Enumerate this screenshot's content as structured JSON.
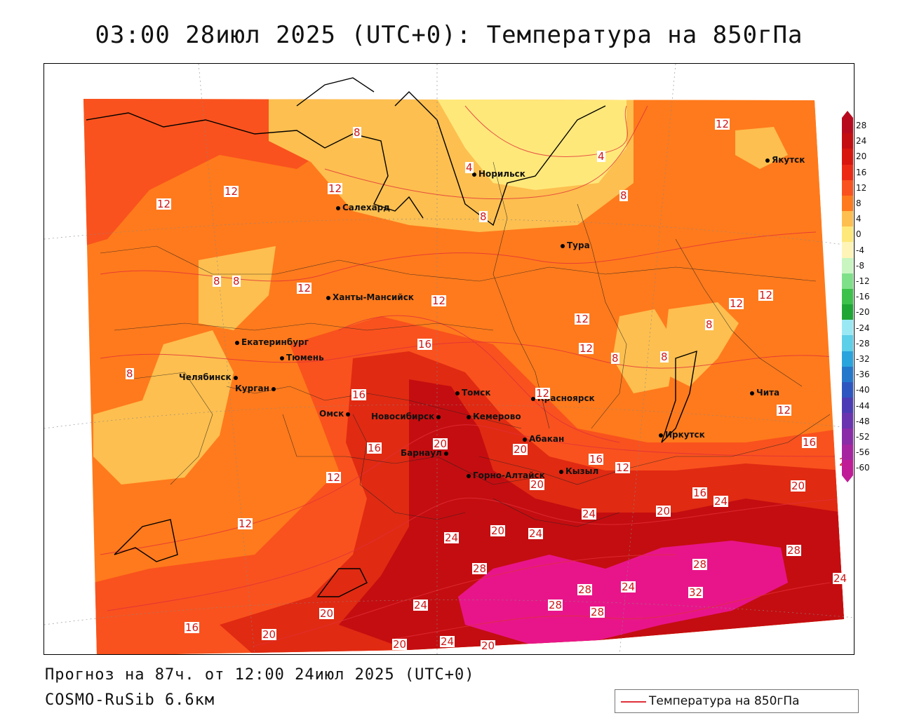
{
  "title": "03:00 28июл 2025 (UTC+0): Температура на 850гПа",
  "footer": {
    "forecast": "Прогноз на 87ч. от 12:00 24июл 2025 (UTC+0)",
    "model": "COSMO-RuSib 6.6км",
    "legend_label": "Температура на 850гПа"
  },
  "colors": {
    "c4": "#ffe87a",
    "c8": "#fdbf4f",
    "c12": "#ff7a1c",
    "c16": "#f9521e",
    "c20": "#e02a12",
    "c24": "#c40d10",
    "c28": "#e8158a",
    "contour": "#e0303a"
  },
  "cities": [
    {
      "name": "Норильск"
    },
    {
      "name": "Якутск"
    },
    {
      "name": "Салехард"
    },
    {
      "name": "Тура"
    },
    {
      "name": "Ханты-Мансийск"
    },
    {
      "name": "Екатеринбург"
    },
    {
      "name": "Тюмень"
    },
    {
      "name": "Челябинск"
    },
    {
      "name": "Курган"
    },
    {
      "name": "Омск"
    },
    {
      "name": "Новосибирск"
    },
    {
      "name": "Томск"
    },
    {
      "name": "Кемерово"
    },
    {
      "name": "Красноярск"
    },
    {
      "name": "Абакан"
    },
    {
      "name": "Барнаул"
    },
    {
      "name": "Горно-Алтайск"
    },
    {
      "name": "Кызыл"
    },
    {
      "name": "Иркутск"
    },
    {
      "name": "Чита"
    }
  ],
  "contour_labels": [
    "8",
    "4",
    "4",
    "12",
    "12",
    "12",
    "8",
    "12",
    "8",
    "8",
    "8",
    "12",
    "12",
    "12",
    "12",
    "8",
    "8",
    "8",
    "12",
    "16",
    "12",
    "16",
    "16",
    "12",
    "20",
    "20",
    "16",
    "12",
    "16",
    "12",
    "20",
    "20",
    "16",
    "20",
    "12",
    "24",
    "20",
    "24",
    "24",
    "20",
    "24",
    "28",
    "28",
    "24",
    "28",
    "28",
    "32",
    "24",
    "28",
    "28",
    "24",
    "20",
    "20",
    "20",
    "24",
    "20",
    "16",
    "12",
    "8"
  ],
  "colorbar_ticks": [
    "28",
    "24",
    "20",
    "16",
    "12",
    "8",
    "4",
    "0",
    "-4",
    "-8",
    "-12",
    "-16",
    "-20",
    "-24",
    "-28",
    "-32",
    "-36",
    "-40",
    "-44",
    "-48",
    "-52",
    "-56",
    "-60"
  ],
  "colorbar_colors": [
    "#b80a1e",
    "#c40d10",
    "#d8160e",
    "#ec2a14",
    "#f9521e",
    "#ff7a1c",
    "#fdbf4f",
    "#ffe87a",
    "#fff4b8",
    "#c8f5c0",
    "#7fe08a",
    "#3cc24a",
    "#1ea634",
    "#9be8f5",
    "#5ccfe9",
    "#2aa4dc",
    "#2378cc",
    "#2e56c0",
    "#4b3cb6",
    "#6a34b0",
    "#8a2ca8",
    "#a624a0",
    "#c01c98"
  ]
}
